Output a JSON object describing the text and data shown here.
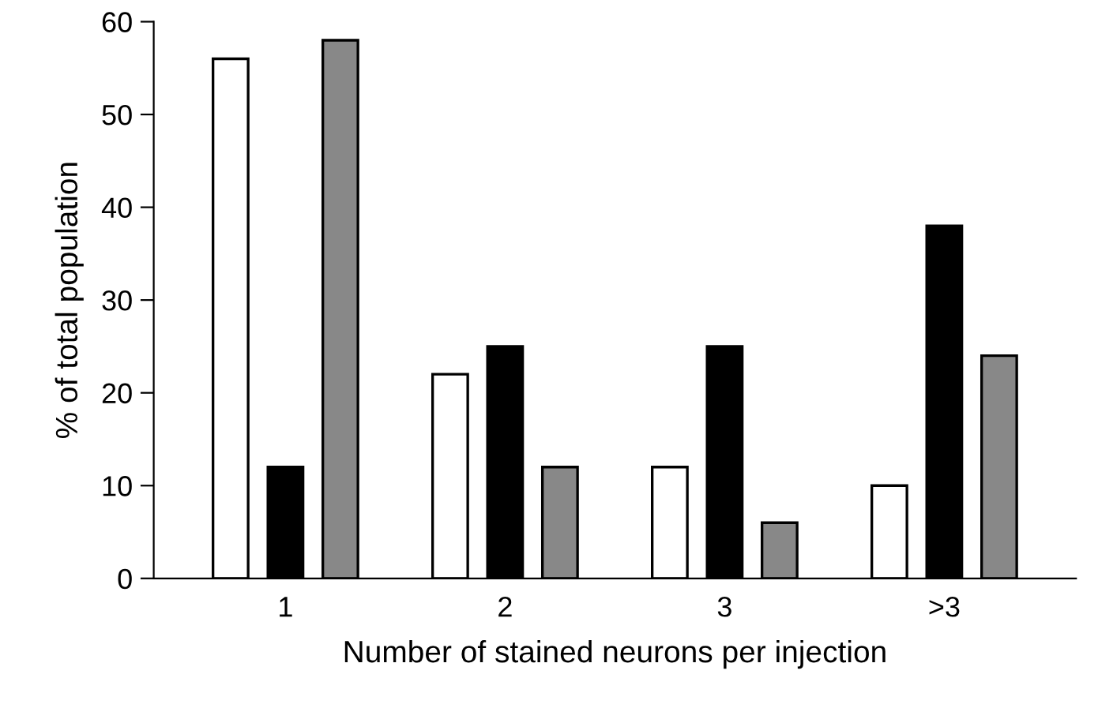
{
  "chart_data": {
    "type": "bar",
    "xlabel": "Number of stained neurons per injection",
    "ylabel": "% of total population",
    "categories": [
      "1",
      "2",
      "3",
      ">3"
    ],
    "series": [
      {
        "color": "#ffffff",
        "values": [
          56,
          22,
          12,
          10
        ]
      },
      {
        "color": "#000000",
        "values": [
          12,
          25,
          25,
          38
        ]
      },
      {
        "color": "#888888",
        "values": [
          58,
          12,
          6,
          24
        ]
      }
    ],
    "ylim": [
      0,
      60
    ],
    "yticks": [
      0,
      10,
      20,
      30,
      40,
      50,
      60
    ],
    "grid": false,
    "legend": false
  }
}
